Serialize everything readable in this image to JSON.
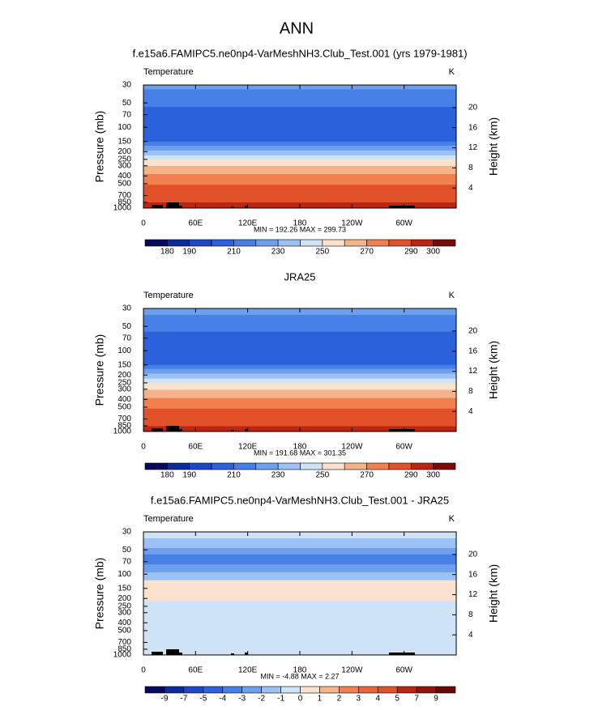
{
  "title": "ANN",
  "chart_data": [
    {
      "type": "contour",
      "title": "f.e15a6.FAMIPC5.ne0np4-VarMeshNH3.Club_Test.001 (yrs 1979-1981)",
      "variable": "Temperature",
      "units": "K",
      "ylabel": "Pressure (mb)",
      "y2label": "Height (km)",
      "xlim": [
        0,
        360
      ],
      "xticks": [
        0,
        {
          "value": 60,
          "label": "60E"
        },
        {
          "value": 120,
          "label": "120E"
        },
        180,
        {
          "value": 240,
          "label": "120W"
        },
        {
          "value": 300,
          "label": "60W"
        }
      ],
      "ylim": [
        30,
        1000
      ],
      "ylog": true,
      "yticks": [
        30,
        50,
        70,
        100,
        150,
        200,
        250,
        300,
        400,
        500,
        700,
        850,
        1000
      ],
      "y2lim": [
        0,
        24.5
      ],
      "y2ticks": [
        4,
        8,
        12,
        16,
        20
      ],
      "stats": "MIN = 192.26  MAX = 299.73",
      "pressure_edges": [
        30,
        34,
        56,
        151,
        169,
        194,
        223,
        250,
        301,
        380,
        513,
        851,
        1000
      ],
      "values": [
        225,
        215,
        205,
        215,
        225,
        235,
        245,
        255,
        265,
        275,
        285,
        295
      ],
      "colorbar": {
        "levels": [
          180,
          190,
          200,
          210,
          220,
          230,
          240,
          250,
          260,
          270,
          280,
          290,
          300
        ],
        "colors": [
          "#08085e",
          "#0b2b9c",
          "#1c48c8",
          "#2b62dc",
          "#4680e6",
          "#6e9fef",
          "#9cc2f5",
          "#cfe3f7",
          "#fbe2cf",
          "#f6b389",
          "#f08050",
          "#e2522a",
          "#bb2612",
          "#7a0a08"
        ],
        "ticks": [
          180,
          190,
          210,
          230,
          250,
          270,
          290,
          300
        ]
      }
    },
    {
      "type": "contour",
      "title": "JRA25",
      "variable": "Temperature",
      "units": "K",
      "ylabel": "Pressure (mb)",
      "y2label": "Height (km)",
      "xlim": [
        0,
        360
      ],
      "xticks": [
        0,
        {
          "value": 60,
          "label": "60E"
        },
        {
          "value": 120,
          "label": "120E"
        },
        180,
        {
          "value": 240,
          "label": "120W"
        },
        {
          "value": 300,
          "label": "60W"
        }
      ],
      "ylim": [
        30,
        1000
      ],
      "ylog": true,
      "yticks": [
        30,
        50,
        70,
        100,
        150,
        200,
        250,
        300,
        400,
        500,
        700,
        850,
        1000
      ],
      "y2lim": [
        0,
        24.5
      ],
      "y2ticks": [
        4,
        8,
        12,
        16,
        20
      ],
      "stats": "MIN = 191.68  MAX = 301.35",
      "pressure_edges": [
        30,
        36,
        58,
        150,
        168,
        192,
        222,
        252,
        305,
        385,
        520,
        860,
        1000
      ],
      "values": [
        225,
        215,
        205,
        215,
        225,
        235,
        245,
        255,
        265,
        275,
        285,
        295
      ],
      "colorbar": {
        "levels": [
          180,
          190,
          200,
          210,
          220,
          230,
          240,
          250,
          260,
          270,
          280,
          290,
          300
        ],
        "colors": [
          "#08085e",
          "#0b2b9c",
          "#1c48c8",
          "#2b62dc",
          "#4680e6",
          "#6e9fef",
          "#9cc2f5",
          "#cfe3f7",
          "#fbe2cf",
          "#f6b389",
          "#f08050",
          "#e2522a",
          "#bb2612",
          "#7a0a08"
        ],
        "ticks": [
          180,
          190,
          210,
          230,
          250,
          270,
          290,
          300
        ]
      }
    },
    {
      "type": "contour",
      "title": "f.e15a6.FAMIPC5.ne0np4-VarMeshNH3.Club_Test.001 - JRA25",
      "variable": "Temperature",
      "units": "K",
      "ylabel": "Pressure (mb)",
      "y2label": "Height (km)",
      "xlim": [
        0,
        360
      ],
      "xticks": [
        0,
        {
          "value": 60,
          "label": "60E"
        },
        {
          "value": 120,
          "label": "120E"
        },
        180,
        {
          "value": 240,
          "label": "120W"
        },
        {
          "value": 300,
          "label": "60W"
        }
      ],
      "ylim": [
        30,
        1000
      ],
      "ylog": true,
      "yticks": [
        30,
        50,
        70,
        100,
        150,
        200,
        250,
        300,
        400,
        500,
        700,
        850,
        1000
      ],
      "y2lim": [
        0,
        24.5
      ],
      "y2ticks": [
        4,
        8,
        12,
        16,
        20
      ],
      "stats": "MIN = -4.88  MAX =  2.27",
      "pressure_edges": [
        30,
        36,
        47.6,
        57,
        75.8,
        95,
        119,
        213,
        1000
      ],
      "values": [
        -0.5,
        -1.5,
        -2.5,
        -3.5,
        -2.5,
        -1.5,
        0.5,
        -0.5
      ],
      "colorbar": {
        "levels": [
          -9,
          -7,
          -5,
          -4,
          -3,
          -2,
          -1,
          0,
          1,
          2,
          3,
          4,
          5,
          7,
          9
        ],
        "colors": [
          "#08085e",
          "#0b2b9c",
          "#1c48c8",
          "#2b62dc",
          "#4680e6",
          "#6e9fef",
          "#9cc2f5",
          "#cfe3f7",
          "#fbe2cf",
          "#f6b389",
          "#f08050",
          "#e8653a",
          "#e2522a",
          "#bb2612",
          "#94140b",
          "#6a0806"
        ],
        "ticks": [
          -9,
          -7,
          -5,
          -4,
          -3,
          -2,
          -1,
          0,
          1,
          2,
          3,
          4,
          5,
          7,
          9
        ]
      }
    }
  ]
}
